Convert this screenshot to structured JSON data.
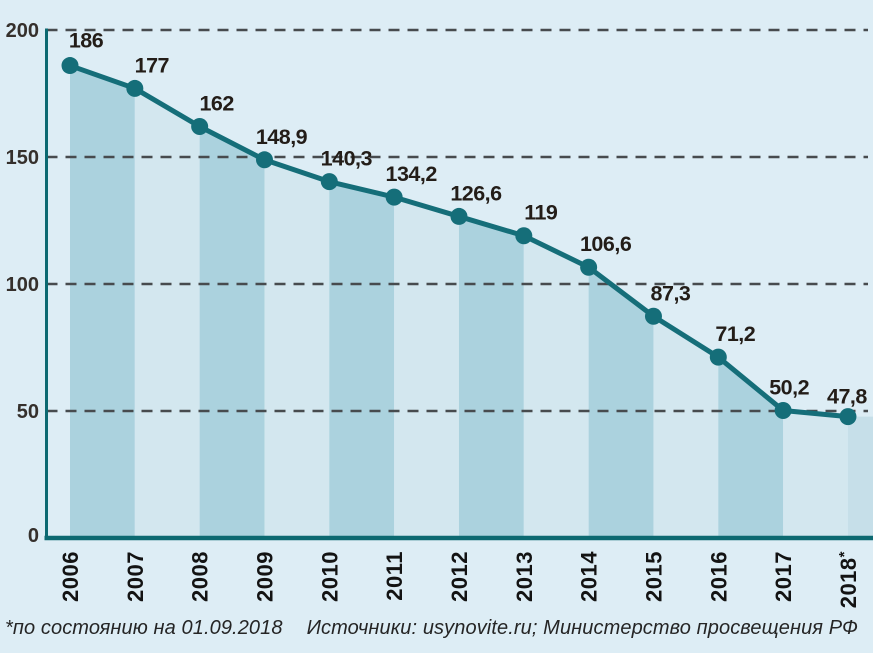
{
  "chart_data": {
    "type": "area",
    "title": "",
    "categories": [
      "2006",
      "2007",
      "2008",
      "2009",
      "2010",
      "2011",
      "2012",
      "2013",
      "2014",
      "2015",
      "2016",
      "2017",
      "2018*"
    ],
    "values": [
      186,
      177,
      162,
      148.9,
      140.3,
      134.2,
      126.6,
      119,
      106.6,
      87.3,
      71.2,
      50.2,
      47.8
    ],
    "value_labels": [
      "186",
      "177",
      "162",
      "148,9",
      "140,3",
      "134,2",
      "126,6",
      "119",
      "106,6",
      "87,3",
      "71,2",
      "50,2",
      "47,8"
    ],
    "xlabel": "",
    "ylabel": "",
    "ylim": [
      0,
      200
    ],
    "y_tick_values": [
      200,
      150,
      100,
      50,
      0
    ],
    "y_tick_labels": [
      "200",
      "150",
      "100",
      "50",
      "0"
    ],
    "grid": "horizontal-dashed",
    "legend": "none",
    "x_labels_rotation": -90,
    "colors": {
      "background": "#ddedf5",
      "band_dark": "#abd2de",
      "band_light": "#d3e7ef",
      "band_tail": "#c6dfe9",
      "line": "#156e79",
      "axis": "#0c6971",
      "gridline": "#474b4e",
      "value_label": "#231d18",
      "year_label": "#131313",
      "tick_label": "#35302c",
      "footer_text": "#252525"
    }
  },
  "footer": {
    "note": "*по состоянию на 01.09.2018",
    "sources": "Источники: usynovite.ru; Министерство просвещения РФ"
  }
}
